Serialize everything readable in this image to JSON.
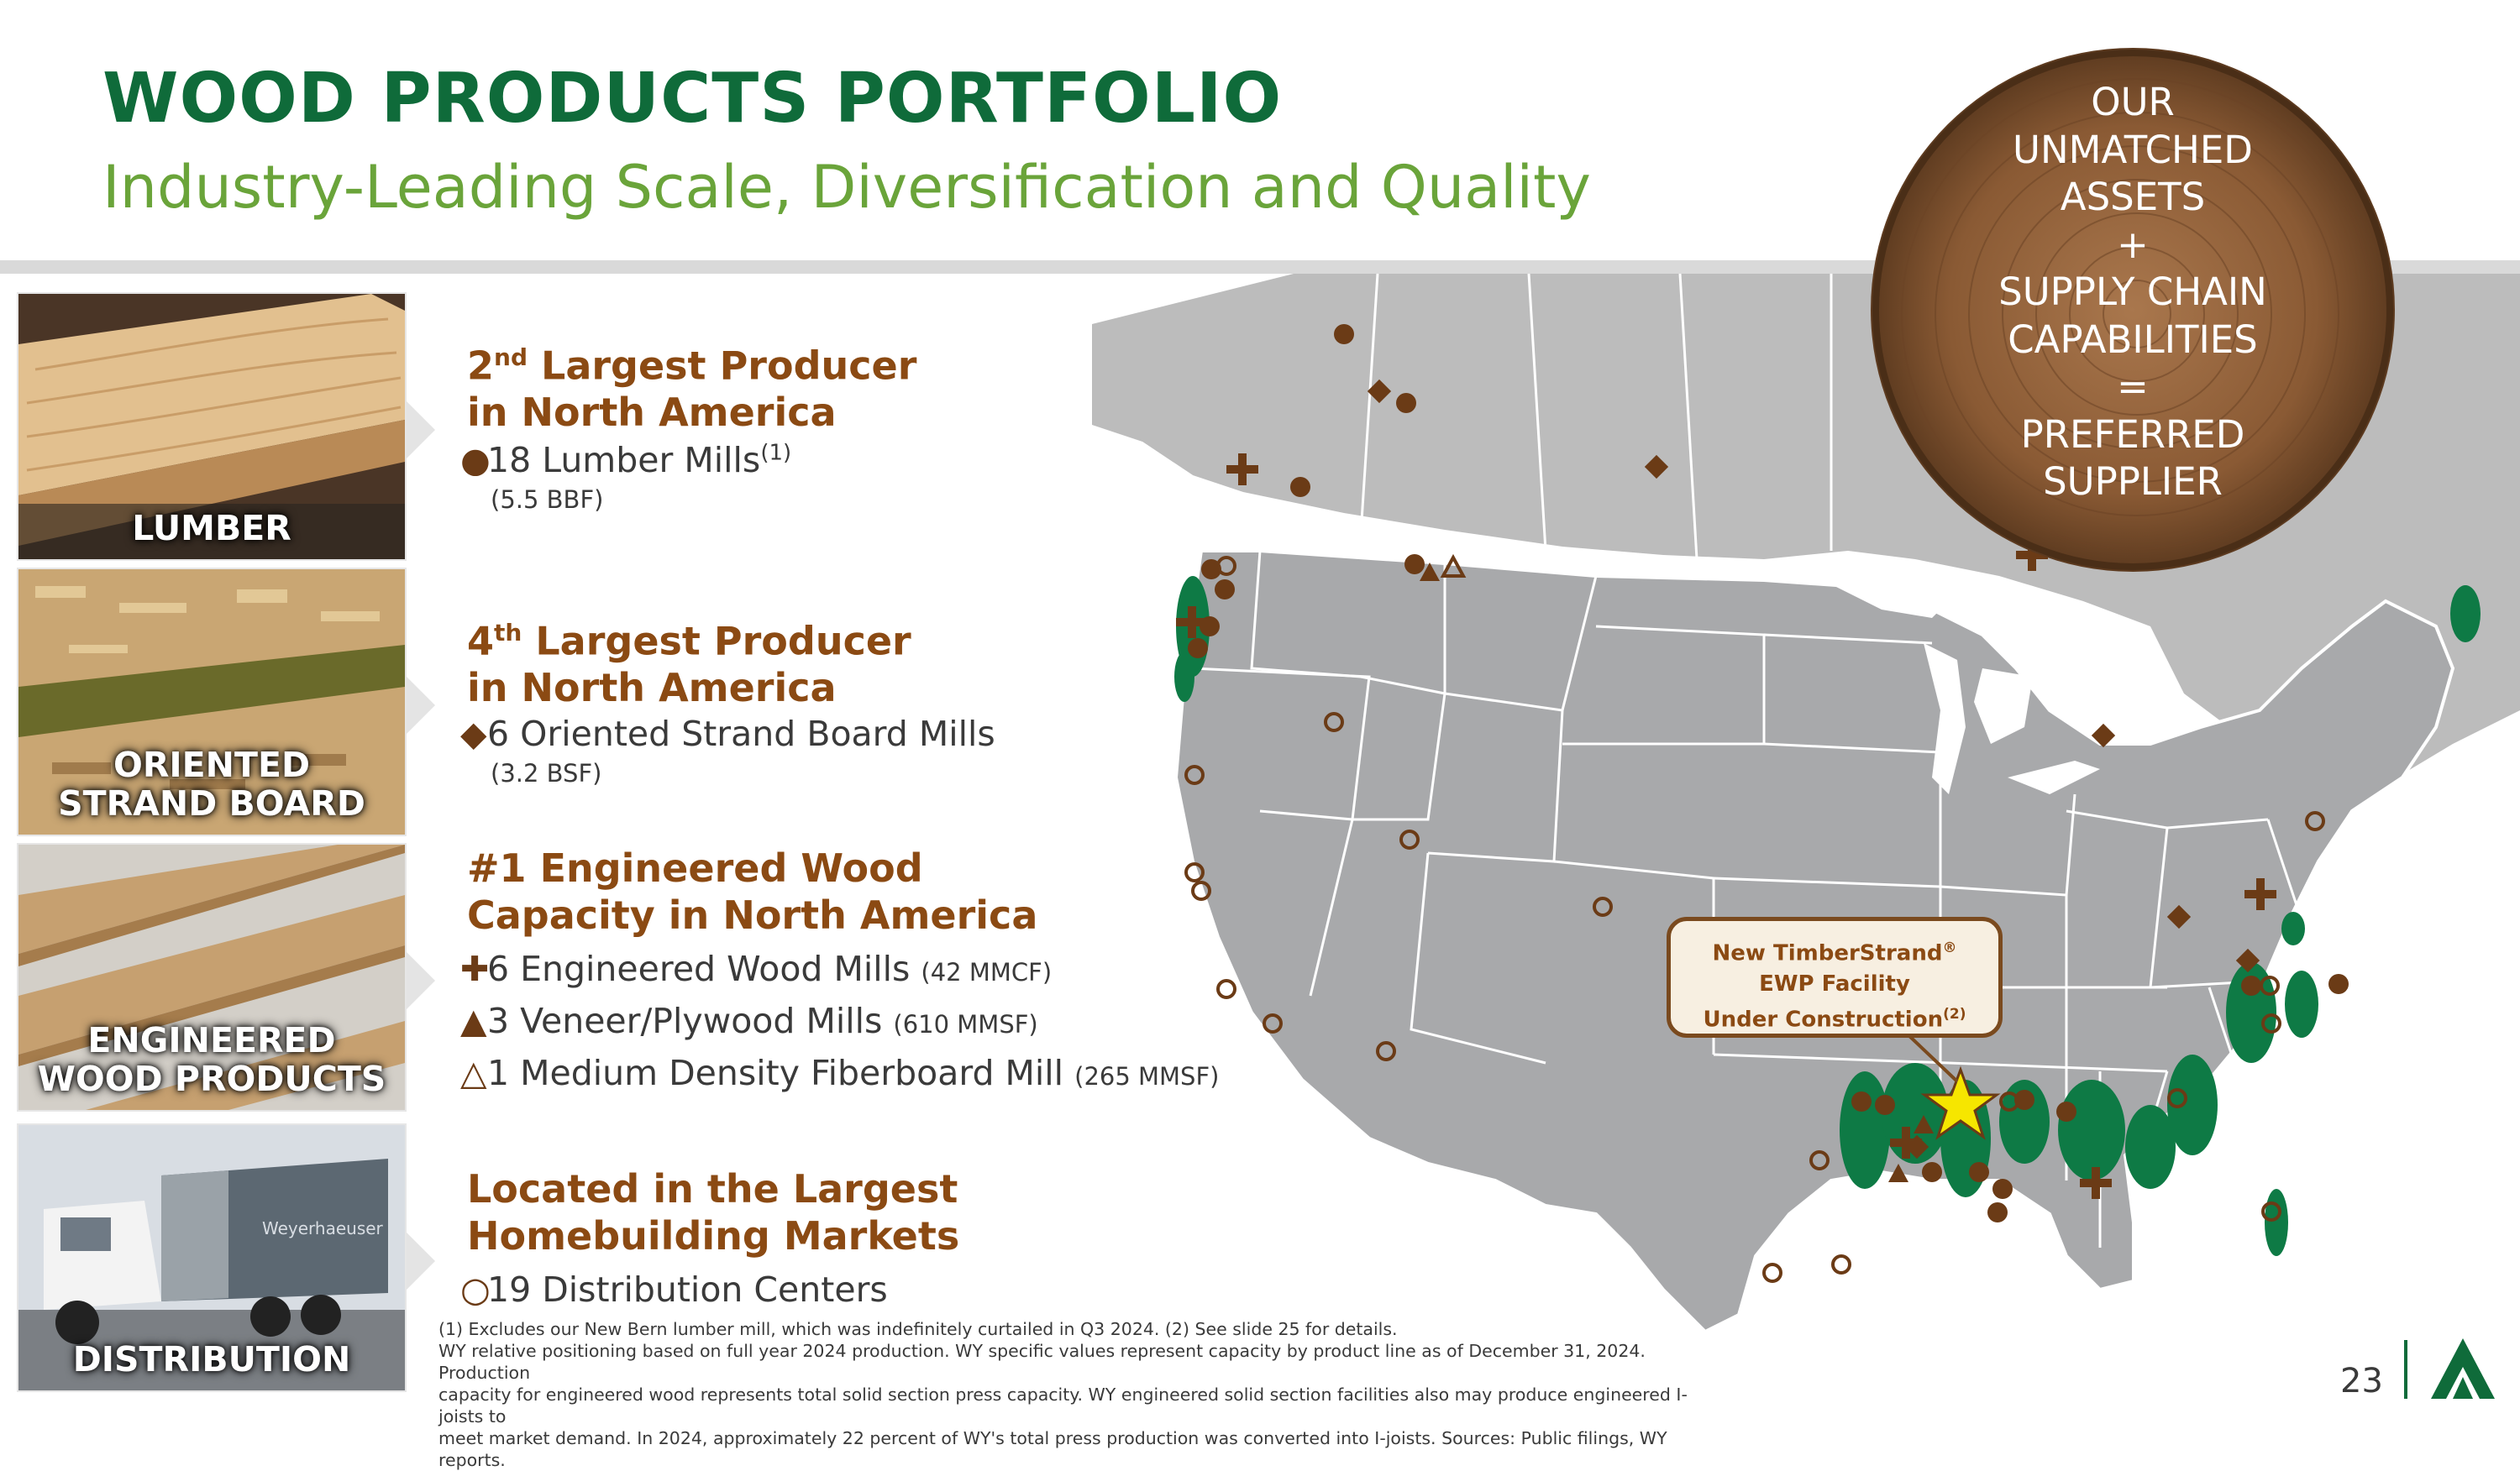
{
  "header": {
    "title": "WOOD PRODUCTS PORTFOLIO",
    "subtitle": "Industry-Leading Scale, Diversification and Quality"
  },
  "badge": {
    "lines": [
      "OUR",
      "UNMATCHED",
      "ASSETS",
      "+",
      "SUPPLY CHAIN",
      "CAPABILITIES",
      "=",
      "PREFERRED",
      "SUPPLIER"
    ]
  },
  "sections": [
    {
      "image_label_1": "LUMBER",
      "image_label_2": "",
      "heading_rank": "2",
      "heading_suffix": "nd",
      "heading_rest": " Largest Producer",
      "heading_line2": "in North America",
      "items": [
        {
          "symbol": "●",
          "text": "18 Lumber Mills",
          "sup": "(1)",
          "detail": "(5.5 BBF)"
        }
      ]
    },
    {
      "image_label_1": "ORIENTED",
      "image_label_2": "STRAND BOARD",
      "heading_rank": "4",
      "heading_suffix": "th",
      "heading_rest": " Largest Producer",
      "heading_line2": "in North America",
      "items": [
        {
          "symbol": "◆",
          "text": "6 Oriented Strand Board Mills",
          "detail": "(3.2 BSF)"
        }
      ]
    },
    {
      "image_label_1": "ENGINEERED",
      "image_label_2": "WOOD PRODUCTS",
      "heading_line1": "#1 Engineered Wood",
      "heading_line2": "Capacity in North America",
      "items": [
        {
          "symbol": "✚",
          "text": "6 Engineered Wood Mills",
          "detail": "(42 MMCF)"
        },
        {
          "symbol": "▲",
          "text": "3 Veneer/Plywood Mills",
          "detail": "(610 MMSF)"
        },
        {
          "symbol": "△",
          "text": "1 Medium Density Fiberboard Mill",
          "detail": "(265 MMSF)"
        }
      ]
    },
    {
      "image_label_1": "DISTRIBUTION",
      "image_label_2": "",
      "heading_line1": "Located in the Largest",
      "heading_line2": "Homebuilding Markets",
      "items": [
        {
          "symbol": "○",
          "text": "19 Distribution Centers"
        }
      ]
    }
  ],
  "truck_brand": "Weyerhaeuser",
  "callout": {
    "line1": "New TimberStrand",
    "reg": "®",
    "line2": "EWP Facility",
    "line3": "Under Construction",
    "sup": "(2)"
  },
  "footnote": {
    "line1": "(1) Excludes our New Bern lumber mill, which was indefinitely curtailed in Q3 2024. (2) See slide 25 for details.",
    "line2": "WY relative positioning based on full year 2024 production. WY specific values represent capacity by product line as of December 31, 2024.  Production",
    "line3": "capacity for engineered wood represents total solid section press capacity. WY engineered solid section facilities also may produce engineered I-joists to",
    "line4": "meet market demand. In 2024, approximately 22 percent of WY's total press production was converted into I-joists. Sources: Public filings, WY reports."
  },
  "page_number": "23",
  "colors": {
    "title_green": "#0f6b3a",
    "subtitle_green": "#6aa43a",
    "brown": "#8b4a13",
    "marker_brown": "#6b3b16",
    "timber_green": "#0e7a45"
  }
}
